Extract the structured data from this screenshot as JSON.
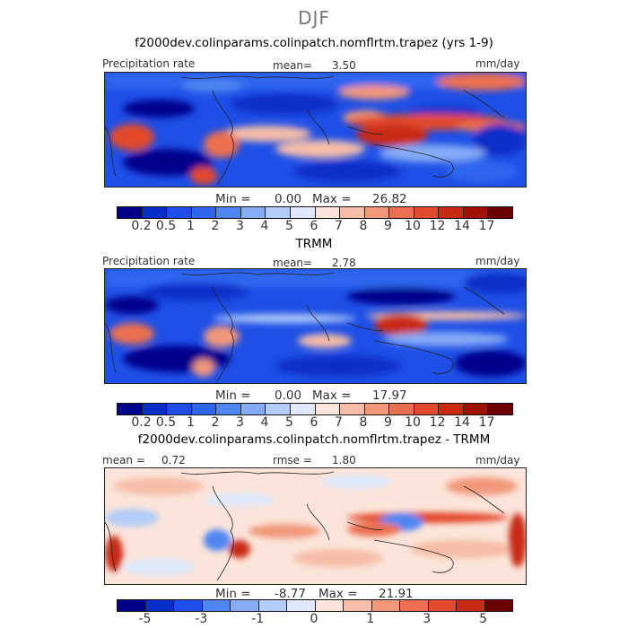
{
  "season": "DJF",
  "panels": [
    {
      "title": "f2000dev.colinparams.colinpatch.nomflrtm.trapez (yrs 1-9)",
      "left_label": "Precipitation rate",
      "mean_label": "mean=",
      "mean_value": "3.50",
      "units": "mm/day",
      "min_label": "Min =",
      "min_value": "0.00",
      "max_label": "Max =",
      "max_value": "26.82"
    },
    {
      "title": "TRMM",
      "left_label": "Precipitation rate",
      "mean_label": "mean=",
      "mean_value": "2.78",
      "units": "mm/day",
      "min_label": "Min =",
      "min_value": "0.00",
      "max_label": "Max =",
      "max_value": "17.97"
    },
    {
      "title": "f2000dev.colinparams.colinpatch.nomflrtm.trapez - TRMM",
      "mean_label": "mean =",
      "mean_value": "0.72",
      "rmse_label": "rmse =",
      "rmse_value": "1.80",
      "units": "mm/day",
      "min_label": "Min =",
      "min_value": "-8.77",
      "max_label": "Max =",
      "max_value": "21.91"
    }
  ],
  "colorbars": {
    "precip": {
      "colors": [
        "#00008b",
        "#0a2fc8",
        "#1e4fe6",
        "#2e66ee",
        "#4f86f2",
        "#86acf6",
        "#b3cdf8",
        "#dfe9fb",
        "#fbe4d9",
        "#f6bea8",
        "#f2987a",
        "#ec7050",
        "#e24a2c",
        "#c92a12",
        "#a01206",
        "#6b0000"
      ],
      "labels": [
        "0.2",
        "0.5",
        "1",
        "2",
        "3",
        "4",
        "5",
        "6",
        "7",
        "8",
        "9",
        "10",
        "12",
        "14",
        "17"
      ]
    },
    "diff": {
      "colors": [
        "#00008b",
        "#0a2fc8",
        "#1e4fe6",
        "#4f86f2",
        "#86acf6",
        "#b3cdf8",
        "#dfe9fb",
        "#fbe4d9",
        "#f6bea8",
        "#f2987a",
        "#ec7050",
        "#e24a2c",
        "#c92a12",
        "#6b0000"
      ],
      "labels": [
        "-5",
        "-3",
        "-1",
        "0",
        "1",
        "3",
        "5"
      ]
    }
  },
  "chart_data": [
    {
      "type": "heatmap",
      "title": "f2000dev.colinparams.colinpatch.nomflrtm.trapez (yrs 1-9)",
      "variable": "Precipitation rate",
      "units": "mm/day",
      "season": "DJF",
      "mean": 3.5,
      "min": 0.0,
      "max": 26.82,
      "color_levels": [
        0.2,
        0.5,
        1,
        2,
        3,
        4,
        5,
        6,
        7,
        8,
        9,
        10,
        12,
        14,
        17
      ]
    },
    {
      "type": "heatmap",
      "title": "TRMM",
      "variable": "Precipitation rate",
      "units": "mm/day",
      "season": "DJF",
      "mean": 2.78,
      "min": 0.0,
      "max": 17.97,
      "color_levels": [
        0.2,
        0.5,
        1,
        2,
        3,
        4,
        5,
        6,
        7,
        8,
        9,
        10,
        12,
        14,
        17
      ]
    },
    {
      "type": "heatmap",
      "title": "f2000dev.colinparams.colinpatch.nomflrtm.trapez - TRMM",
      "units": "mm/day",
      "season": "DJF",
      "mean": 0.72,
      "rmse": 1.8,
      "min": -8.77,
      "max": 21.91,
      "color_levels": [
        -5,
        -3,
        -1,
        0,
        1,
        3,
        5
      ]
    }
  ]
}
